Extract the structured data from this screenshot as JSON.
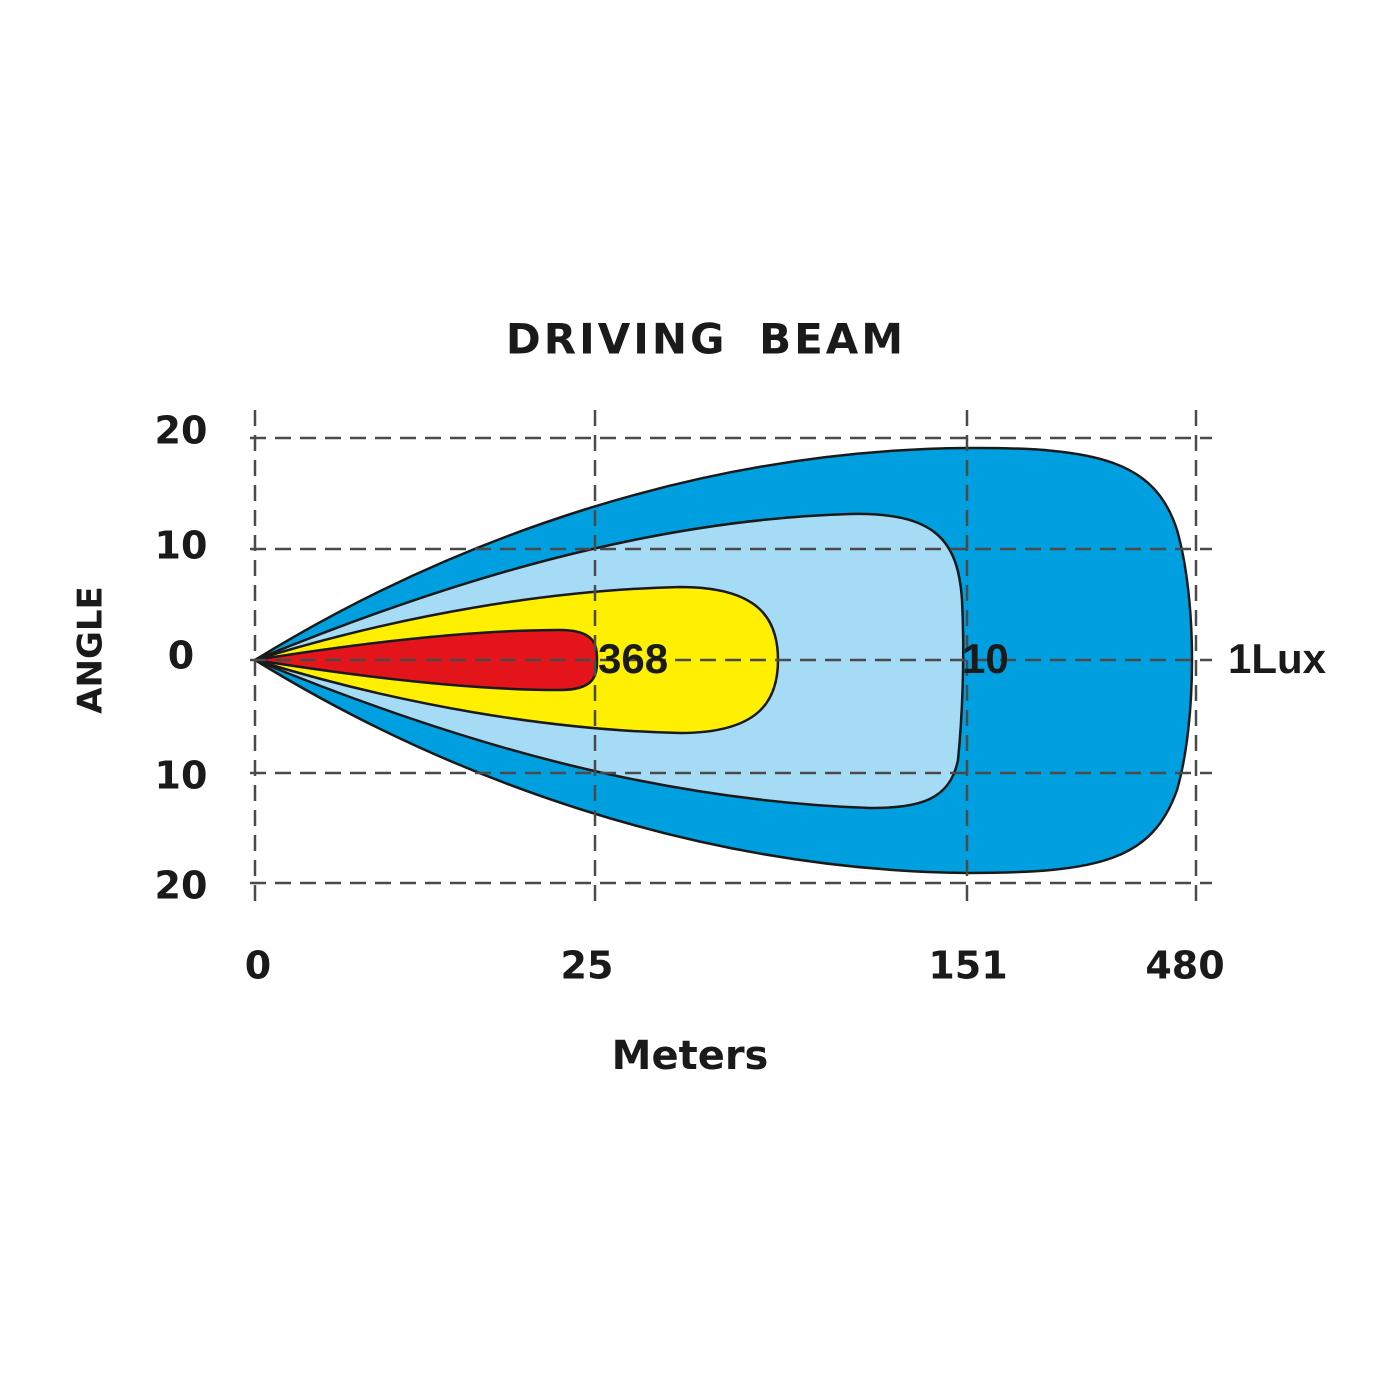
{
  "title": "DRIVING BEAM",
  "y_axis": {
    "label": "ANGLE",
    "ticks": [
      "20",
      "10",
      "0",
      "10",
      "20"
    ]
  },
  "x_axis": {
    "label": "Meters",
    "ticks": [
      "0",
      "25",
      "151",
      "480"
    ]
  },
  "zone_labels": [
    "368",
    "10",
    "1Lux"
  ]
}
